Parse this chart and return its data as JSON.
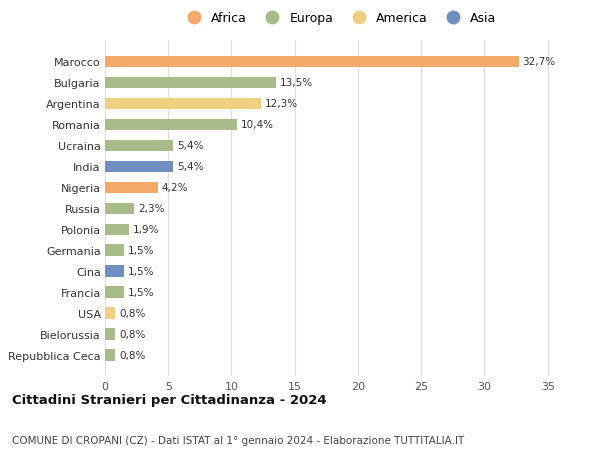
{
  "categories": [
    "Marocco",
    "Bulgaria",
    "Argentina",
    "Romania",
    "Ucraina",
    "India",
    "Nigeria",
    "Russia",
    "Polonia",
    "Germania",
    "Cina",
    "Francia",
    "USA",
    "Bielorussia",
    "Repubblica Ceca"
  ],
  "values": [
    32.7,
    13.5,
    12.3,
    10.4,
    5.4,
    5.4,
    4.2,
    2.3,
    1.9,
    1.5,
    1.5,
    1.5,
    0.8,
    0.8,
    0.8
  ],
  "labels": [
    "32,7%",
    "13,5%",
    "12,3%",
    "10,4%",
    "5,4%",
    "5,4%",
    "4,2%",
    "2,3%",
    "1,9%",
    "1,5%",
    "1,5%",
    "1,5%",
    "0,8%",
    "0,8%",
    "0,8%"
  ],
  "continents": [
    "Africa",
    "Europa",
    "America",
    "Europa",
    "Europa",
    "Asia",
    "Africa",
    "Europa",
    "Europa",
    "Europa",
    "Asia",
    "Europa",
    "America",
    "Europa",
    "Europa"
  ],
  "colors": {
    "Africa": "#F4A96A",
    "Europa": "#A8BC8A",
    "America": "#F0D080",
    "Asia": "#6E8FC0"
  },
  "legend_order": [
    "Africa",
    "Europa",
    "America",
    "Asia"
  ],
  "title": "Cittadini Stranieri per Cittadinanza - 2024",
  "subtitle": "COMUNE DI CROPANI (CZ) - Dati ISTAT al 1° gennaio 2024 - Elaborazione TUTTITALIA.IT",
  "xlim": [
    0,
    37
  ],
  "xticks": [
    0,
    5,
    10,
    15,
    20,
    25,
    30,
    35
  ],
  "background_color": "#ffffff",
  "grid_color": "#dddddd"
}
